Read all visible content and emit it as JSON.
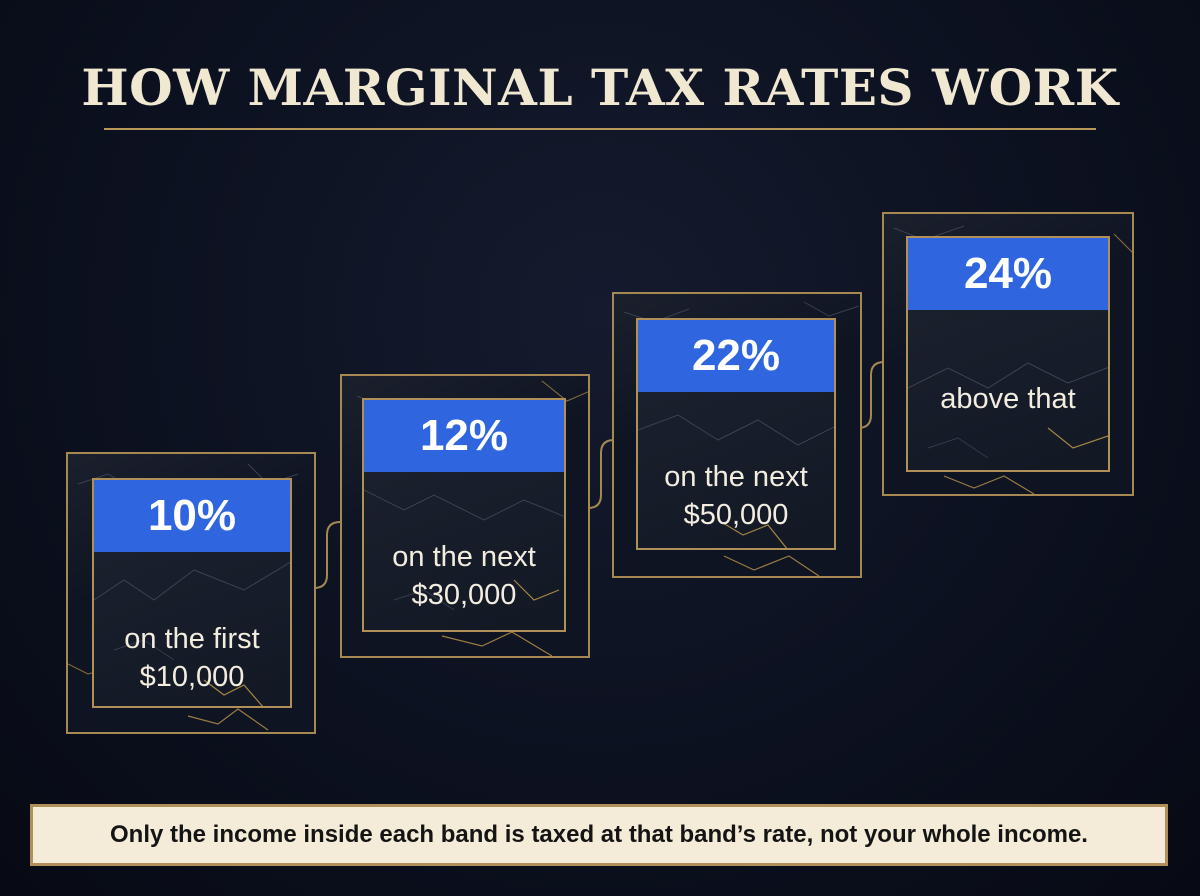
{
  "title": "HOW MARGINAL TAX RATES WORK",
  "bands": [
    {
      "rate": "10%",
      "line1": "on the first",
      "line2": "$10,000"
    },
    {
      "rate": "12%",
      "line1": "on the next",
      "line2": "$30,000"
    },
    {
      "rate": "22%",
      "line1": "on the next",
      "line2": "$50,000"
    },
    {
      "rate": "24%",
      "line1": "above that",
      "line2": ""
    }
  ],
  "footer": "Only the income inside each band is taxed at that band’s rate, not your whole income.",
  "colors": {
    "accent_blue": "#2f66e0",
    "gold": "#b08f58",
    "background": "#0c1120",
    "title": "#f1e8d2"
  }
}
